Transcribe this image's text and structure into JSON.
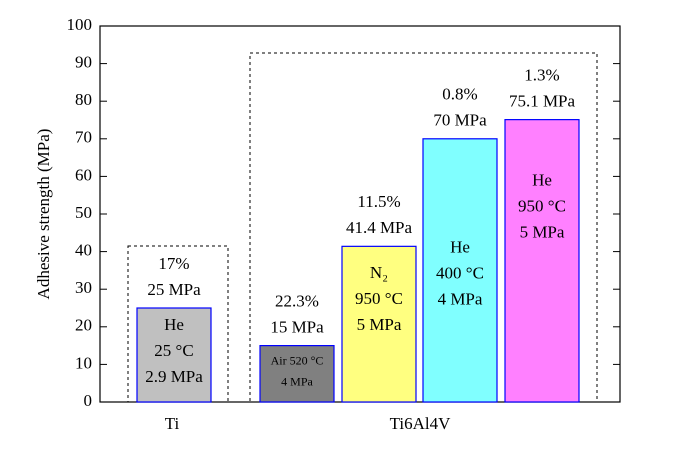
{
  "chart_data": {
    "type": "bar",
    "y_label": "Adhesive strength (MPa)",
    "categories": [
      null,
      null,
      null,
      null,
      null
    ],
    "values": [
      25,
      15,
      41.4,
      70,
      75.1
    ],
    "value_labels": [
      "25 MPa",
      "15 MPa",
      "41.4 MPa",
      "70 MPa",
      "75.1 MPa"
    ],
    "percent_labels": [
      "17%",
      "22.3%",
      "11.5%",
      "0.8%",
      "1.3%"
    ],
    "conditions": [
      [
        "He",
        "25 °C",
        "2.9 MPa"
      ],
      [
        "Air 520 °C",
        "4 MPa"
      ],
      [
        "N₂",
        "950 °C",
        "5 MPa"
      ],
      [
        "He",
        "400 °C",
        "4 MPa"
      ],
      [
        "He",
        "950 °C",
        "5 MPa"
      ]
    ],
    "colors": [
      "#c0c0c0",
      "#808080",
      "#ffff80",
      "#80ffff",
      "#ff80ff"
    ],
    "edge_color": "#0000ff",
    "groups": [
      "Ti",
      "Ti6Al4V"
    ],
    "ylim": [
      0,
      100
    ],
    "yticks": [
      0,
      10,
      20,
      30,
      40,
      50,
      60,
      70,
      80,
      90,
      100
    ]
  }
}
